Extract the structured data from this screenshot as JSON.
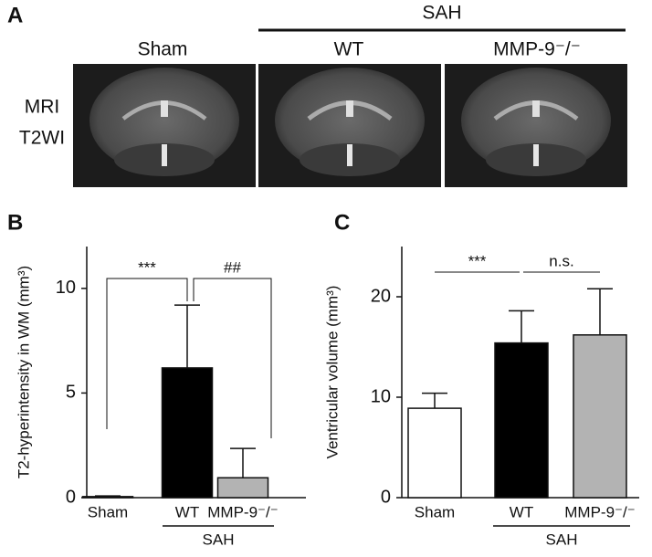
{
  "panel_a": {
    "letter": "A",
    "group_label": "SAH",
    "columns": [
      "Sham",
      "WT",
      "MMP-9⁻/⁻"
    ],
    "row_label": [
      "MRI",
      "T2WI"
    ]
  },
  "chart_data": [
    {
      "type": "bar",
      "letter": "B",
      "y_label": "T2-hyperintensity in WM (mm³)",
      "categories": [
        "Sham",
        "WT",
        "MMP-9⁻/⁻"
      ],
      "values": [
        0.05,
        6.2,
        0.95
      ],
      "errors": [
        0.03,
        3.0,
        1.4
      ],
      "colors": [
        "#ffffff",
        "#000000",
        "#b3b3b3"
      ],
      "ylim": [
        0,
        12
      ],
      "yticks": [
        0,
        5,
        10
      ],
      "group_label": "SAH",
      "annotations": [
        "***",
        "##"
      ]
    },
    {
      "type": "bar",
      "letter": "C",
      "y_label": "Ventricular volume (mm³)",
      "categories": [
        "Sham",
        "WT",
        "MMP-9⁻/⁻"
      ],
      "values": [
        8.9,
        15.4,
        16.2
      ],
      "errors": [
        1.5,
        3.2,
        4.6
      ],
      "colors": [
        "#ffffff",
        "#000000",
        "#b3b3b3"
      ],
      "ylim": [
        0,
        25
      ],
      "yticks": [
        0,
        10,
        20
      ],
      "group_label": "SAH",
      "annotations": [
        "***",
        "n.s."
      ]
    }
  ]
}
